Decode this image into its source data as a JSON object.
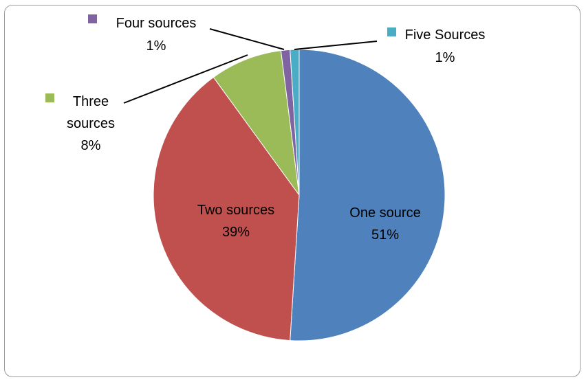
{
  "chart_data": {
    "type": "pie",
    "title": "",
    "slices": [
      {
        "name": "One source",
        "value": 51,
        "value_label": "51%",
        "color": "#4F81BD",
        "label_lines": [
          "One source",
          "51%"
        ]
      },
      {
        "name": "Two sources",
        "value": 39,
        "value_label": "39%",
        "color": "#C0504D",
        "label_lines": [
          "Two sources",
          "39%"
        ]
      },
      {
        "name": "Three sources",
        "value": 8,
        "value_label": "8%",
        "color": "#9BBB59",
        "label_lines": [
          "Three",
          "sources",
          "8%"
        ]
      },
      {
        "name": "Four sources",
        "value": 1,
        "value_label": "1%",
        "color": "#8064A2",
        "label_lines": [
          "Four sources",
          "1%"
        ]
      },
      {
        "name": "Five Sources",
        "value": 1,
        "value_label": "1%",
        "color": "#4BACC6",
        "label_lines": [
          "Five Sources",
          "1%"
        ]
      }
    ],
    "start_angle_deg": 0,
    "direction": "clockwise",
    "label_style": "category name and percentage; small slices use leader lines with a legend key"
  }
}
